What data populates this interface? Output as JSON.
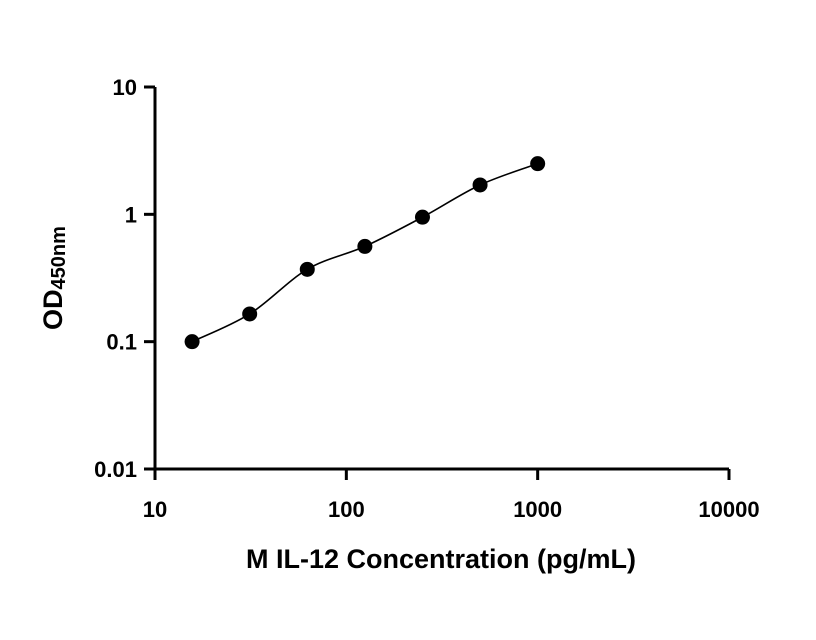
{
  "chart_data": {
    "type": "scatter",
    "xlabel": "M IL-12 Concentration (pg/mL)",
    "ylabel": "OD",
    "ylabel_subscript": "450nm",
    "x_scale": "log",
    "y_scale": "log",
    "xlim": [
      10,
      10000
    ],
    "ylim": [
      0.01,
      10
    ],
    "x_ticks": [
      "10",
      "100",
      "1000",
      "10000"
    ],
    "y_ticks": [
      "0.01",
      "0.1",
      "1",
      "10"
    ],
    "grid": false,
    "legend": "none",
    "colors": {
      "points": "#000000",
      "line": "#000000",
      "axes": "#000000"
    },
    "series": [
      {
        "x": [
          15.625,
          31.25,
          62.5,
          125,
          250,
          500,
          1000
        ],
        "y": [
          0.1,
          0.165,
          0.37,
          0.56,
          0.95,
          1.7,
          2.5
        ]
      }
    ],
    "fit_curve": true
  }
}
